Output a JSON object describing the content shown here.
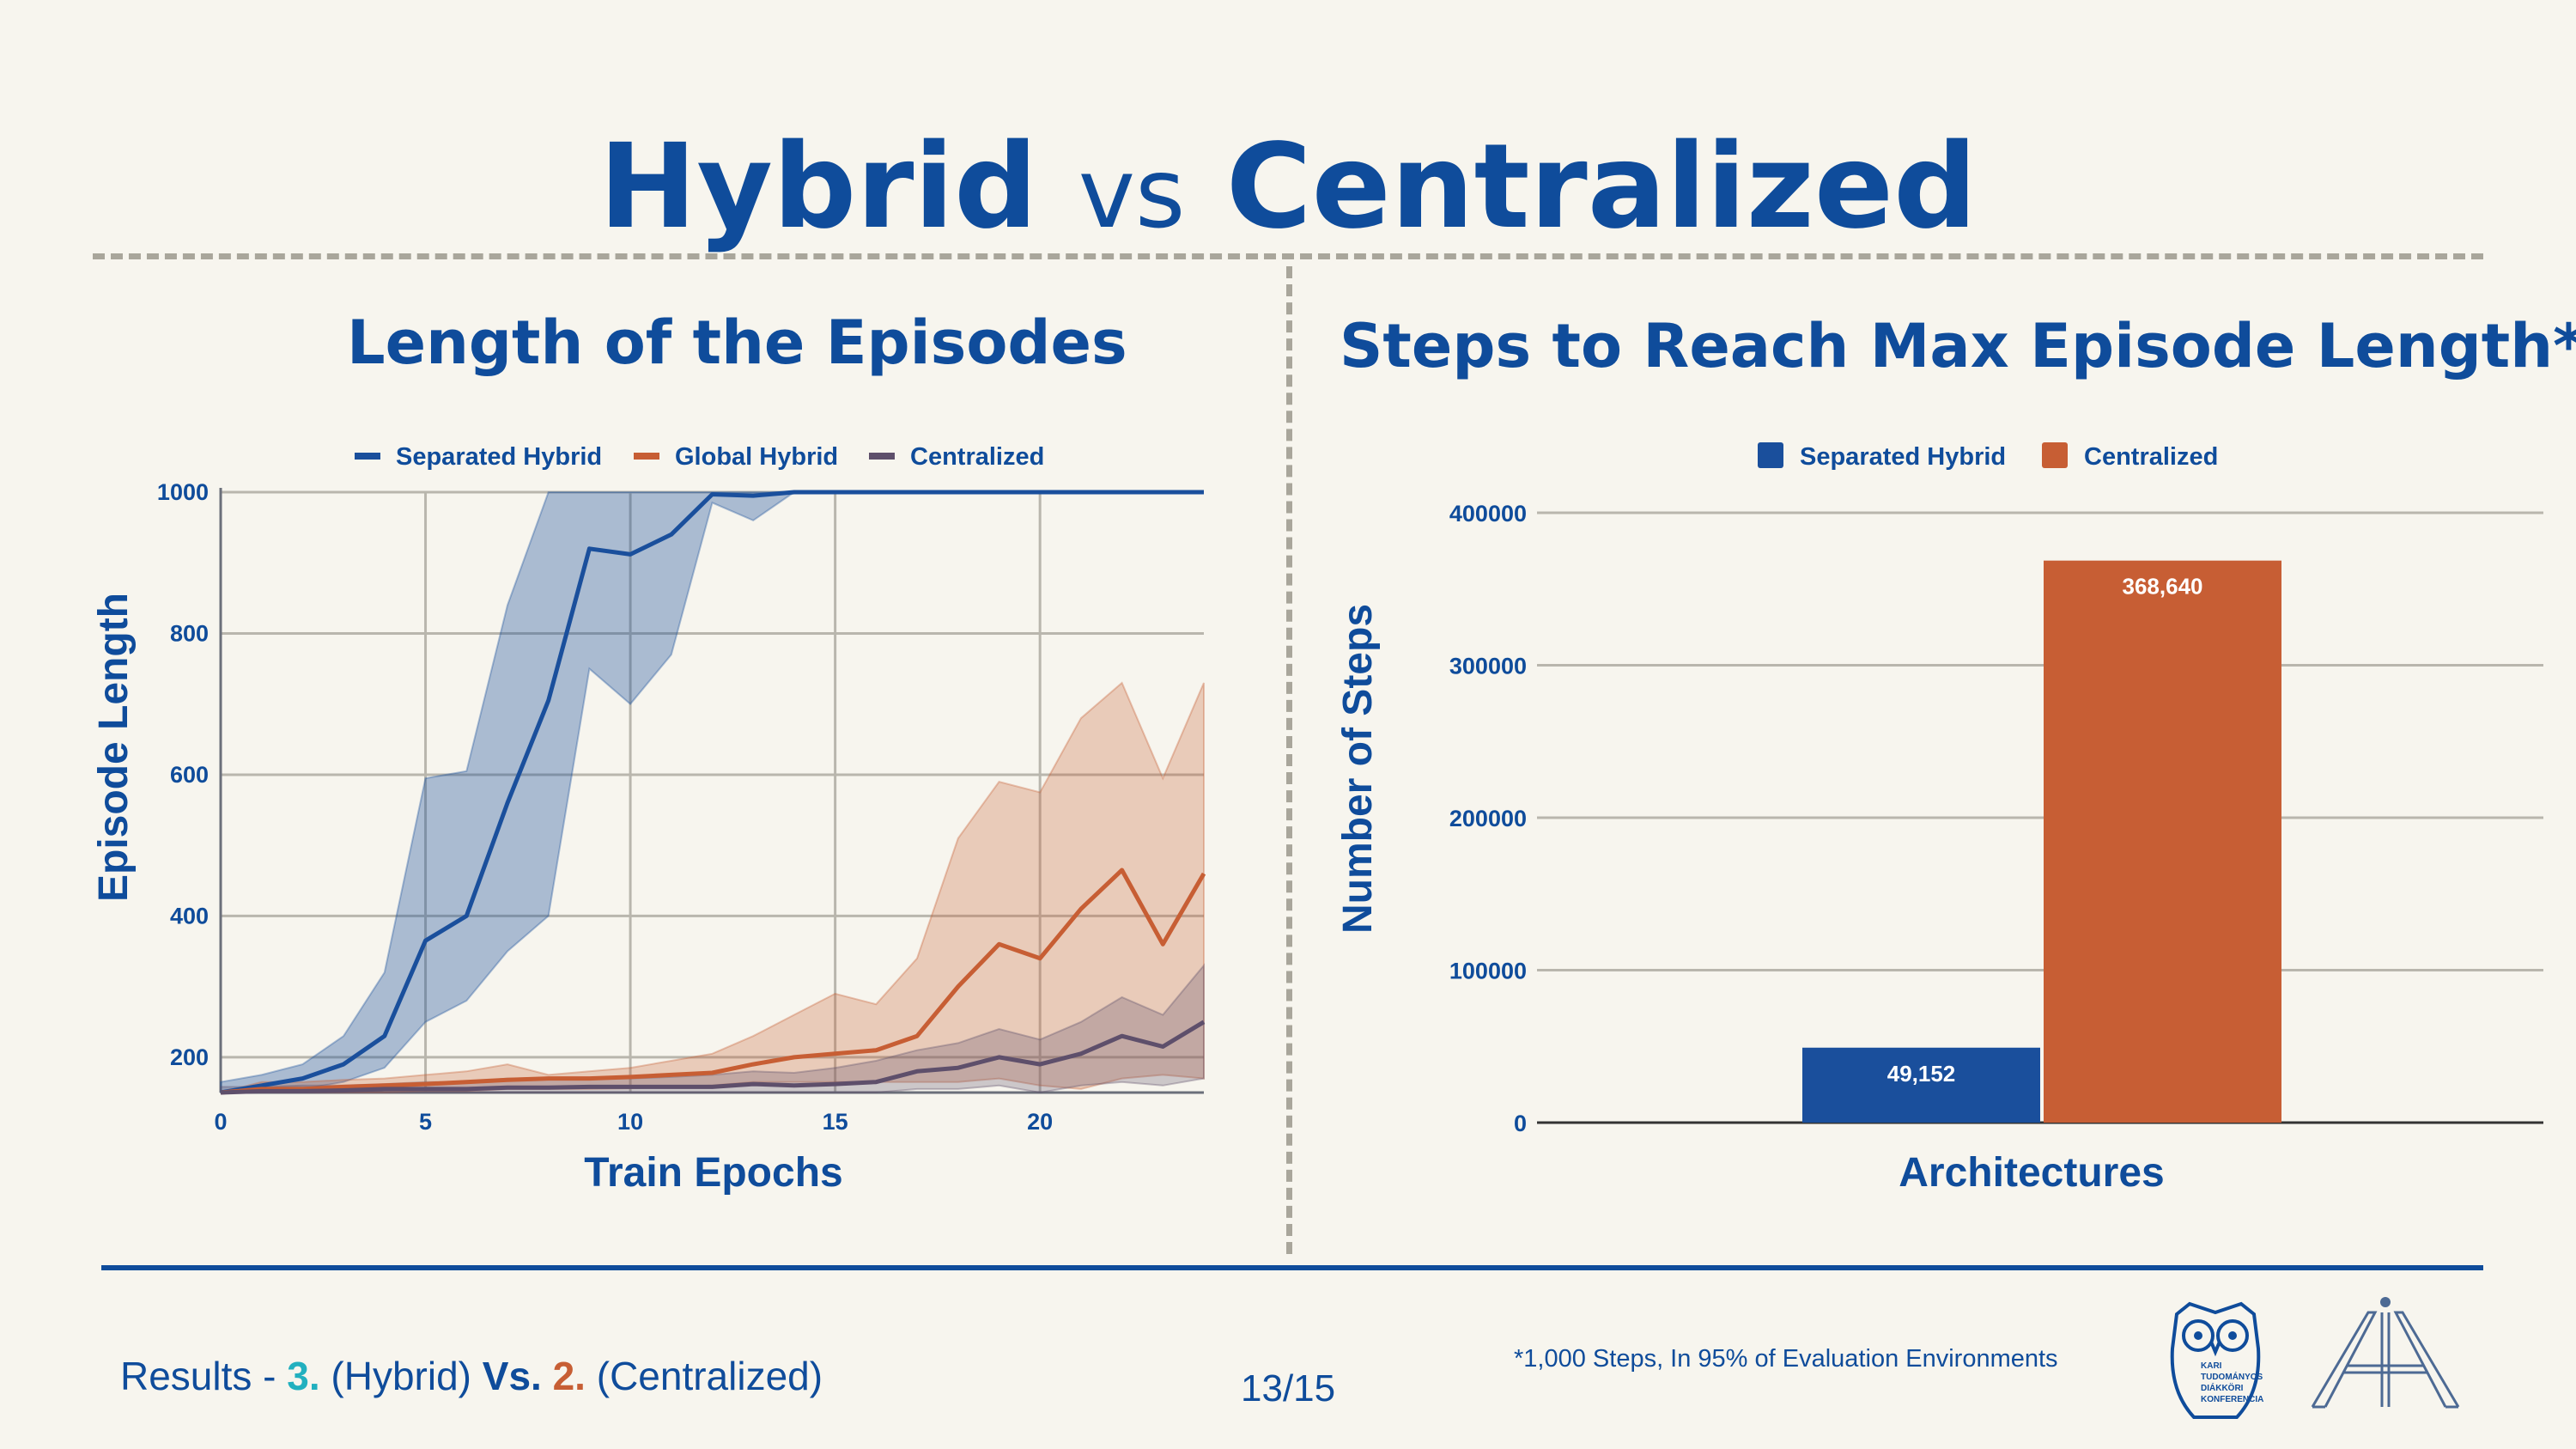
{
  "title": {
    "part1": "Hybrid",
    "vs": "vs",
    "part2": "Centralized"
  },
  "colors": {
    "brand_blue": "#0f4c9b",
    "separated_hybrid": "#1a4f9c",
    "global_hybrid": "#c75e34",
    "centralized_line": "#5e4f6b",
    "teal": "#22b0bf",
    "background": "#f7f5ee"
  },
  "left_panel": {
    "subtitle": "Length of the Episodes"
  },
  "right_panel": {
    "subtitle": "Steps to Reach Max Episode Length*"
  },
  "chart_data": [
    {
      "type": "line",
      "title": "Length of the Episodes",
      "xlabel": "Train Epochs",
      "ylabel": "Episode Length",
      "xlim": [
        0,
        24
      ],
      "ylim": [
        150,
        1000
      ],
      "xticks": [
        0,
        5,
        10,
        15,
        20
      ],
      "yticks": [
        200,
        400,
        600,
        800,
        1000
      ],
      "grid": true,
      "legend_position": "top",
      "x": [
        0,
        1,
        2,
        3,
        4,
        5,
        6,
        7,
        8,
        9,
        10,
        11,
        12,
        13,
        14,
        15,
        16,
        17,
        18,
        19,
        20,
        21,
        22,
        23,
        24
      ],
      "series": [
        {
          "name": "Separated Hybrid",
          "color": "#1a4f9c",
          "values": [
            150,
            160,
            170,
            190,
            230,
            365,
            400,
            560,
            705,
            920,
            912,
            940,
            997,
            995,
            1000,
            1000,
            1000,
            1000,
            1000,
            1000,
            1000,
            1000,
            1000,
            1000,
            1000
          ],
          "lower": [
            150,
            150,
            155,
            165,
            185,
            250,
            280,
            350,
            400,
            750,
            700,
            770,
            985,
            960,
            1000,
            1000,
            1000,
            1000,
            1000,
            1000,
            1000,
            1000,
            1000,
            1000,
            1000
          ],
          "upper": [
            165,
            175,
            190,
            230,
            320,
            595,
            605,
            840,
            1000,
            1000,
            1000,
            1000,
            1000,
            1000,
            1000,
            1000,
            1000,
            1000,
            1000,
            1000,
            1000,
            1000,
            1000,
            1000,
            1000
          ]
        },
        {
          "name": "Global Hybrid",
          "color": "#c75e34",
          "values": [
            125,
            155,
            155,
            158,
            160,
            162,
            165,
            168,
            170,
            170,
            172,
            175,
            178,
            190,
            200,
            205,
            210,
            230,
            300,
            360,
            340,
            410,
            465,
            360,
            460
          ],
          "lower": [
            110,
            150,
            150,
            150,
            150,
            152,
            152,
            155,
            155,
            155,
            156,
            158,
            160,
            165,
            165,
            165,
            165,
            165,
            165,
            170,
            160,
            155,
            170,
            175,
            170
          ],
          "upper": [
            140,
            165,
            165,
            168,
            170,
            175,
            180,
            190,
            175,
            180,
            185,
            195,
            205,
            230,
            260,
            290,
            275,
            340,
            510,
            590,
            575,
            680,
            730,
            595,
            730
          ]
        },
        {
          "name": "Centralized",
          "color": "#5e4f6b",
          "values": [
            150,
            152,
            152,
            153,
            155,
            155,
            155,
            157,
            157,
            158,
            158,
            158,
            158,
            162,
            160,
            162,
            165,
            180,
            185,
            200,
            190,
            205,
            230,
            215,
            250
          ],
          "lower": [
            145,
            148,
            148,
            148,
            149,
            149,
            150,
            150,
            150,
            150,
            150,
            150,
            150,
            150,
            150,
            150,
            150,
            155,
            155,
            160,
            150,
            160,
            165,
            160,
            170
          ],
          "upper": [
            158,
            158,
            160,
            160,
            162,
            165,
            165,
            170,
            170,
            170,
            170,
            172,
            175,
            180,
            178,
            185,
            195,
            210,
            220,
            240,
            225,
            250,
            285,
            260,
            330
          ]
        }
      ]
    },
    {
      "type": "bar",
      "title": "Steps to Reach Max Episode Length*",
      "xlabel": "Architectures",
      "ylabel": "Number of Steps",
      "ylim": [
        0,
        400000
      ],
      "yticks": [
        0,
        100000,
        200000,
        300000,
        400000
      ],
      "ytick_labels": [
        "0",
        "100000",
        "200000",
        "300000",
        "400000"
      ],
      "grid": true,
      "legend_position": "top",
      "series": [
        {
          "name": "Separated Hybrid",
          "value": 49152,
          "label": "49,152",
          "color": "#1a4f9c"
        },
        {
          "name": "Centralized",
          "value": 368640,
          "label": "368,640",
          "color": "#c75e34"
        }
      ]
    }
  ],
  "footer": {
    "results_prefix": "Results - ",
    "num1": "3.",
    "hybrid": " (Hybrid) ",
    "vs": "Vs.",
    "num2": " 2.",
    "centralized": " (Centralized)",
    "page": "13/15",
    "footnote": "*1,000 Steps, In 95% of Evaluation Environments",
    "logo1_text": [
      "KARI",
      "TUDOMÁNYOS",
      "DIÁKKÖRI",
      "KONFERENCIA"
    ]
  }
}
